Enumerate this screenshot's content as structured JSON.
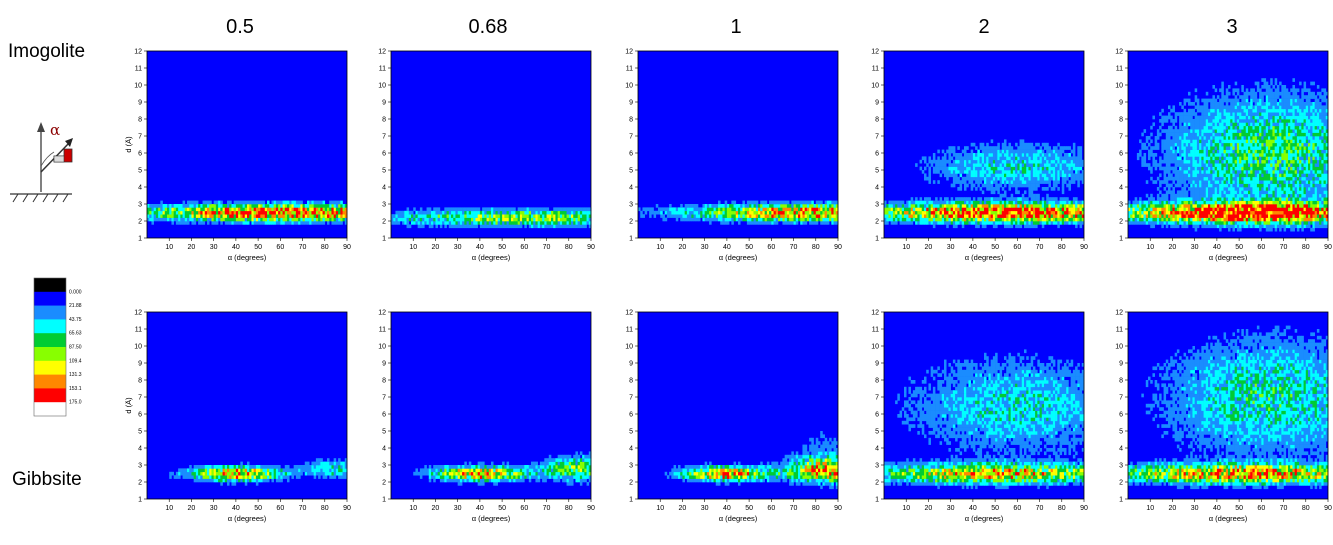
{
  "figure": {
    "column_titles": [
      "0.5",
      "0.68",
      "1",
      "2",
      "3"
    ],
    "row_labels": [
      "Imogolite",
      "Gibbsite"
    ],
    "icon_symbol": "α",
    "icon_name": "magnet-orientation-angle-icon"
  },
  "colorbar": {
    "ticks": [
      "0.000",
      "21.88",
      "43.75",
      "65.63",
      "87.50",
      "109.4",
      "131.3",
      "153.1",
      "175.0"
    ],
    "colors": [
      "#000000",
      "#0000ff",
      "#1a8cff",
      "#00ffff",
      "#00cc33",
      "#88ff00",
      "#ffff00",
      "#ff8800",
      "#ff0000",
      "#ffffff"
    ]
  },
  "chart_data": [
    {
      "type": "heatmap",
      "row": "Imogolite",
      "column": "0.5",
      "xlabel": "α (degrees)",
      "ylabel": "d (Å)",
      "xlim": [
        0,
        90
      ],
      "ylim": [
        1,
        12
      ],
      "xticks": [
        "10",
        "20",
        "30",
        "40",
        "50",
        "60",
        "70",
        "80",
        "90"
      ],
      "yticks": [
        "1",
        "2",
        "3",
        "4",
        "5",
        "6",
        "7",
        "8",
        "9",
        "10",
        "11",
        "12"
      ],
      "bands": [
        {
          "d": 2.5,
          "spread": 0.35,
          "peak": 160,
          "alpha_center": 60,
          "alpha_width": 45
        }
      ]
    },
    {
      "type": "heatmap",
      "row": "Imogolite",
      "column": "0.68",
      "xlabel": "α (degrees)",
      "ylabel": "",
      "xlim": [
        0,
        90
      ],
      "ylim": [
        1,
        12
      ],
      "xticks": [
        "10",
        "20",
        "30",
        "40",
        "50",
        "60",
        "70",
        "80",
        "90"
      ],
      "yticks": [
        "1",
        "2",
        "3",
        "4",
        "5",
        "6",
        "7",
        "8",
        "9",
        "10",
        "11",
        "12"
      ],
      "bands": [
        {
          "d": 2.2,
          "spread": 0.35,
          "peak": 95,
          "alpha_center": 60,
          "alpha_width": 45
        }
      ]
    },
    {
      "type": "heatmap",
      "row": "Imogolite",
      "column": "1",
      "xlabel": "α (degrees)",
      "ylabel": "",
      "xlim": [
        0,
        90
      ],
      "ylim": [
        1,
        12
      ],
      "xticks": [
        "10",
        "20",
        "30",
        "40",
        "50",
        "60",
        "70",
        "80",
        "90"
      ],
      "yticks": [
        "1",
        "2",
        "3",
        "4",
        "5",
        "6",
        "7",
        "8",
        "9",
        "10",
        "11",
        "12"
      ],
      "bands": [
        {
          "d": 2.5,
          "spread": 0.35,
          "peak": 150,
          "alpha_center": 80,
          "alpha_width": 40
        }
      ]
    },
    {
      "type": "heatmap",
      "row": "Imogolite",
      "column": "2",
      "xlabel": "α (degrees)",
      "ylabel": "",
      "xlim": [
        0,
        90
      ],
      "ylim": [
        1,
        12
      ],
      "xticks": [
        "10",
        "20",
        "30",
        "40",
        "50",
        "60",
        "70",
        "80",
        "90"
      ],
      "yticks": [
        "1",
        "2",
        "3",
        "4",
        "5",
        "6",
        "7",
        "8",
        "9",
        "10",
        "11",
        "12"
      ],
      "bands": [
        {
          "d": 2.5,
          "spread": 0.4,
          "peak": 170,
          "alpha_center": 55,
          "alpha_width": 45
        },
        {
          "d": 5.2,
          "spread": 1.0,
          "peak": 55,
          "alpha_center": 60,
          "alpha_width": 30
        }
      ]
    },
    {
      "type": "heatmap",
      "row": "Imogolite",
      "column": "3",
      "xlabel": "α (degrees)",
      "ylabel": "",
      "xlim": [
        0,
        90
      ],
      "ylim": [
        1,
        12
      ],
      "xticks": [
        "10",
        "20",
        "30",
        "40",
        "50",
        "60",
        "70",
        "80",
        "90"
      ],
      "yticks": [
        "1",
        "2",
        "3",
        "4",
        "5",
        "6",
        "7",
        "8",
        "9",
        "10",
        "11",
        "12"
      ],
      "bands": [
        {
          "d": 2.5,
          "spread": 0.4,
          "peak": 175,
          "alpha_center": 55,
          "alpha_width": 45
        },
        {
          "d": 6.0,
          "spread": 2.5,
          "peak": 75,
          "alpha_center": 65,
          "alpha_width": 35
        }
      ]
    },
    {
      "type": "heatmap",
      "row": "Gibbsite",
      "column": "0.5",
      "xlabel": "α (degrees)",
      "ylabel": "d (Å)",
      "xlim": [
        0,
        90
      ],
      "ylim": [
        1,
        12
      ],
      "xticks": [
        "10",
        "20",
        "30",
        "40",
        "50",
        "60",
        "70",
        "80",
        "90"
      ],
      "yticks": [
        "1",
        "2",
        "3",
        "4",
        "5",
        "6",
        "7",
        "8",
        "9",
        "10",
        "11",
        "12"
      ],
      "bands": [
        {
          "d": 2.5,
          "spread": 0.3,
          "peak": 140,
          "alpha_center": 40,
          "alpha_width": 15
        },
        {
          "d": 2.8,
          "spread": 0.4,
          "peak": 60,
          "alpha_center": 85,
          "alpha_width": 10
        }
      ]
    },
    {
      "type": "heatmap",
      "row": "Gibbsite",
      "column": "0.68",
      "xlabel": "α (degrees)",
      "ylabel": "",
      "xlim": [
        0,
        90
      ],
      "ylim": [
        1,
        12
      ],
      "xticks": [
        "10",
        "20",
        "30",
        "40",
        "50",
        "60",
        "70",
        "80",
        "90"
      ],
      "yticks": [
        "1",
        "2",
        "3",
        "4",
        "5",
        "6",
        "7",
        "8",
        "9",
        "10",
        "11",
        "12"
      ],
      "bands": [
        {
          "d": 2.5,
          "spread": 0.3,
          "peak": 140,
          "alpha_center": 40,
          "alpha_width": 15
        },
        {
          "d": 2.8,
          "spread": 0.5,
          "peak": 90,
          "alpha_center": 85,
          "alpha_width": 12
        }
      ]
    },
    {
      "type": "heatmap",
      "row": "Gibbsite",
      "column": "1",
      "xlabel": "α (degrees)",
      "ylabel": "",
      "xlim": [
        0,
        90
      ],
      "ylim": [
        1,
        12
      ],
      "xticks": [
        "10",
        "20",
        "30",
        "40",
        "50",
        "60",
        "70",
        "80",
        "90"
      ],
      "yticks": [
        "1",
        "2",
        "3",
        "4",
        "5",
        "6",
        "7",
        "8",
        "9",
        "10",
        "11",
        "12"
      ],
      "bands": [
        {
          "d": 2.5,
          "spread": 0.3,
          "peak": 140,
          "alpha_center": 40,
          "alpha_width": 15
        },
        {
          "d": 2.7,
          "spread": 0.5,
          "peak": 130,
          "alpha_center": 85,
          "alpha_width": 12
        },
        {
          "d": 4.0,
          "spread": 1.0,
          "peak": 25,
          "alpha_center": 85,
          "alpha_width": 12
        }
      ]
    },
    {
      "type": "heatmap",
      "row": "Gibbsite",
      "column": "2",
      "xlabel": "α (degrees)",
      "ylabel": "",
      "xlim": [
        0,
        90
      ],
      "ylim": [
        1,
        12
      ],
      "xticks": [
        "10",
        "20",
        "30",
        "40",
        "50",
        "60",
        "70",
        "80",
        "90"
      ],
      "yticks": [
        "1",
        "2",
        "3",
        "4",
        "5",
        "6",
        "7",
        "8",
        "9",
        "10",
        "11",
        "12"
      ],
      "bands": [
        {
          "d": 2.5,
          "spread": 0.4,
          "peak": 120,
          "alpha_center": 50,
          "alpha_width": 45
        },
        {
          "d": 6.5,
          "spread": 2.0,
          "peak": 55,
          "alpha_center": 60,
          "alpha_width": 35
        }
      ]
    },
    {
      "type": "heatmap",
      "row": "Gibbsite",
      "column": "3",
      "xlabel": "α (degrees)",
      "ylabel": "",
      "xlim": [
        0,
        90
      ],
      "ylim": [
        1,
        12
      ],
      "xticks": [
        "10",
        "20",
        "30",
        "40",
        "50",
        "60",
        "70",
        "80",
        "90"
      ],
      "yticks": [
        "1",
        "2",
        "3",
        "4",
        "5",
        "6",
        "7",
        "8",
        "9",
        "10",
        "11",
        "12"
      ],
      "bands": [
        {
          "d": 2.5,
          "spread": 0.4,
          "peak": 130,
          "alpha_center": 50,
          "alpha_width": 45
        },
        {
          "d": 7.0,
          "spread": 2.5,
          "peak": 65,
          "alpha_center": 65,
          "alpha_width": 35
        }
      ]
    }
  ]
}
